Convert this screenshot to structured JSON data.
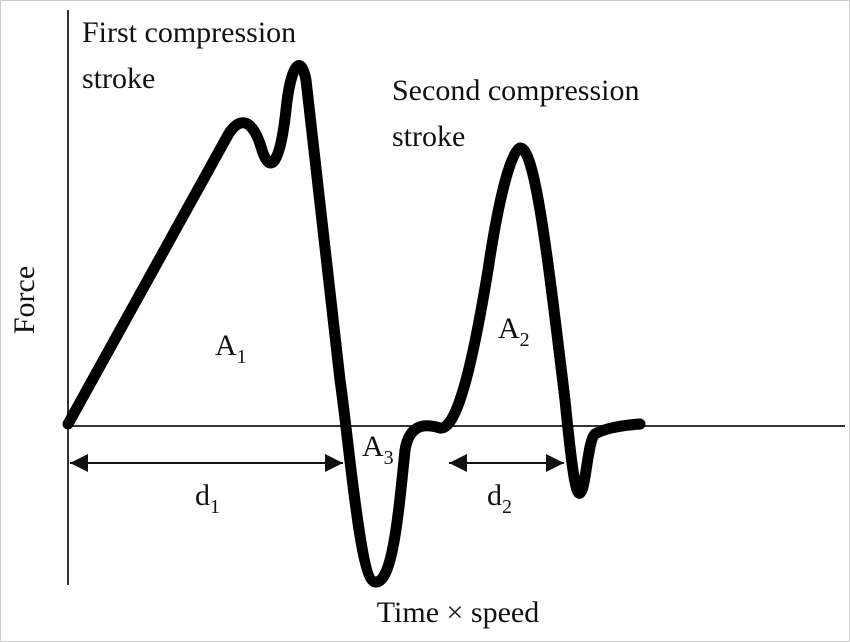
{
  "labels": {
    "first_stroke": [
      "First compression",
      "stroke"
    ],
    "second_stroke": [
      "Second compression",
      "stroke"
    ],
    "y_axis": "Force",
    "x_axis": "Time × speed",
    "areas": [
      {
        "main": "A",
        "sub": "1"
      },
      {
        "main": "A",
        "sub": "2"
      },
      {
        "main": "A",
        "sub": "3"
      }
    ],
    "distances": [
      {
        "main": "d",
        "sub": "1"
      },
      {
        "main": "d",
        "sub": "2"
      }
    ]
  }
}
